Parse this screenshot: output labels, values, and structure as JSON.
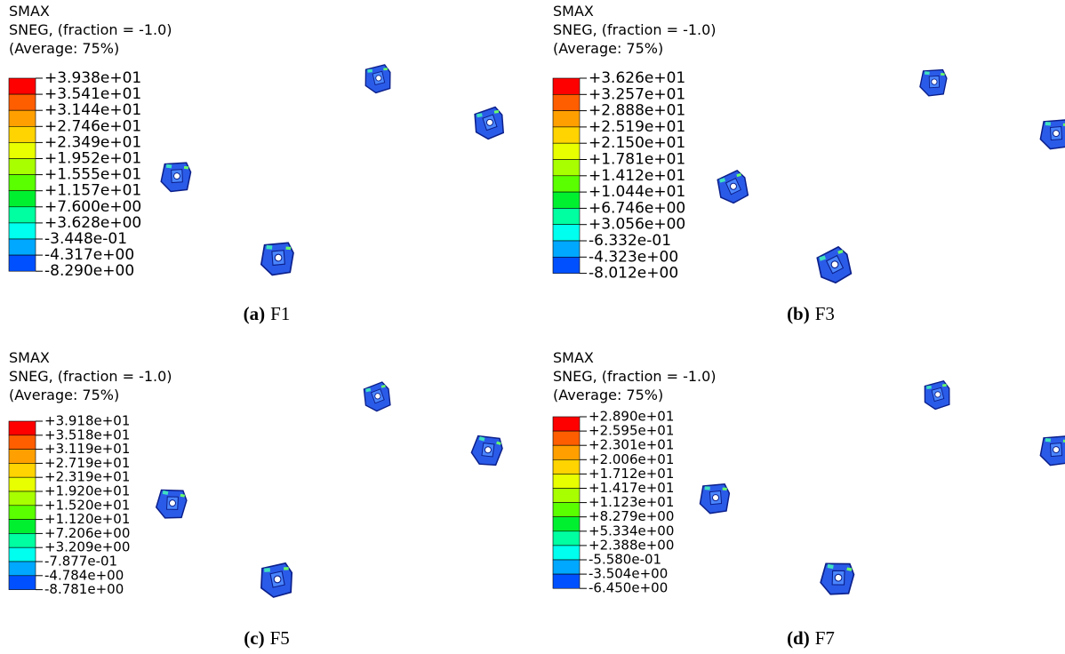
{
  "panels": [
    {
      "header": [
        "SMAX",
        "SNEG, (fraction = -1.0)",
        "(Average: 75%)"
      ],
      "legend": [
        "+3.938e+01",
        "+3.541e+01",
        "+3.144e+01",
        "+2.746e+01",
        "+2.349e+01",
        "+1.952e+01",
        "+1.555e+01",
        "+1.157e+01",
        "+7.600e+00",
        "+3.628e+00",
        "-3.448e-01",
        "-4.317e+00",
        "-8.290e+00"
      ],
      "caption": {
        "letter": "(a)",
        "text": "F1"
      }
    },
    {
      "header": [
        "SMAX",
        "SNEG, (fraction = -1.0)",
        "(Average: 75%)"
      ],
      "legend": [
        "+3.626e+01",
        "+3.257e+01",
        "+2.888e+01",
        "+2.519e+01",
        "+2.150e+01",
        "+1.781e+01",
        "+1.412e+01",
        "+1.044e+01",
        "+6.746e+00",
        "+3.056e+00",
        "-6.332e-01",
        "-4.323e+00",
        "-8.012e+00"
      ],
      "caption": {
        "letter": "(b)",
        "text": "F3"
      }
    },
    {
      "header": [
        "SMAX",
        "SNEG, (fraction = -1.0)",
        "(Average: 75%)"
      ],
      "legend": [
        "+3.918e+01",
        "+3.518e+01",
        "+3.119e+01",
        "+2.719e+01",
        "+2.319e+01",
        "+1.920e+01",
        "+1.520e+01",
        "+1.120e+01",
        "+7.206e+00",
        "+3.209e+00",
        "-7.877e-01",
        "-4.784e+00",
        "-8.781e+00"
      ],
      "caption": {
        "letter": "(c)",
        "text": "F5"
      }
    },
    {
      "header": [
        "SMAX",
        "SNEG, (fraction = -1.0)",
        "(Average: 75%)"
      ],
      "legend": [
        "+2.890e+01",
        "+2.595e+01",
        "+2.301e+01",
        "+2.006e+01",
        "+1.712e+01",
        "+1.417e+01",
        "+1.123e+01",
        "+8.279e+00",
        "+5.334e+00",
        "+2.388e+00",
        "-5.580e-01",
        "-3.504e+00",
        "-6.450e+00"
      ],
      "caption": {
        "letter": "(d)",
        "text": "F7"
      }
    }
  ]
}
